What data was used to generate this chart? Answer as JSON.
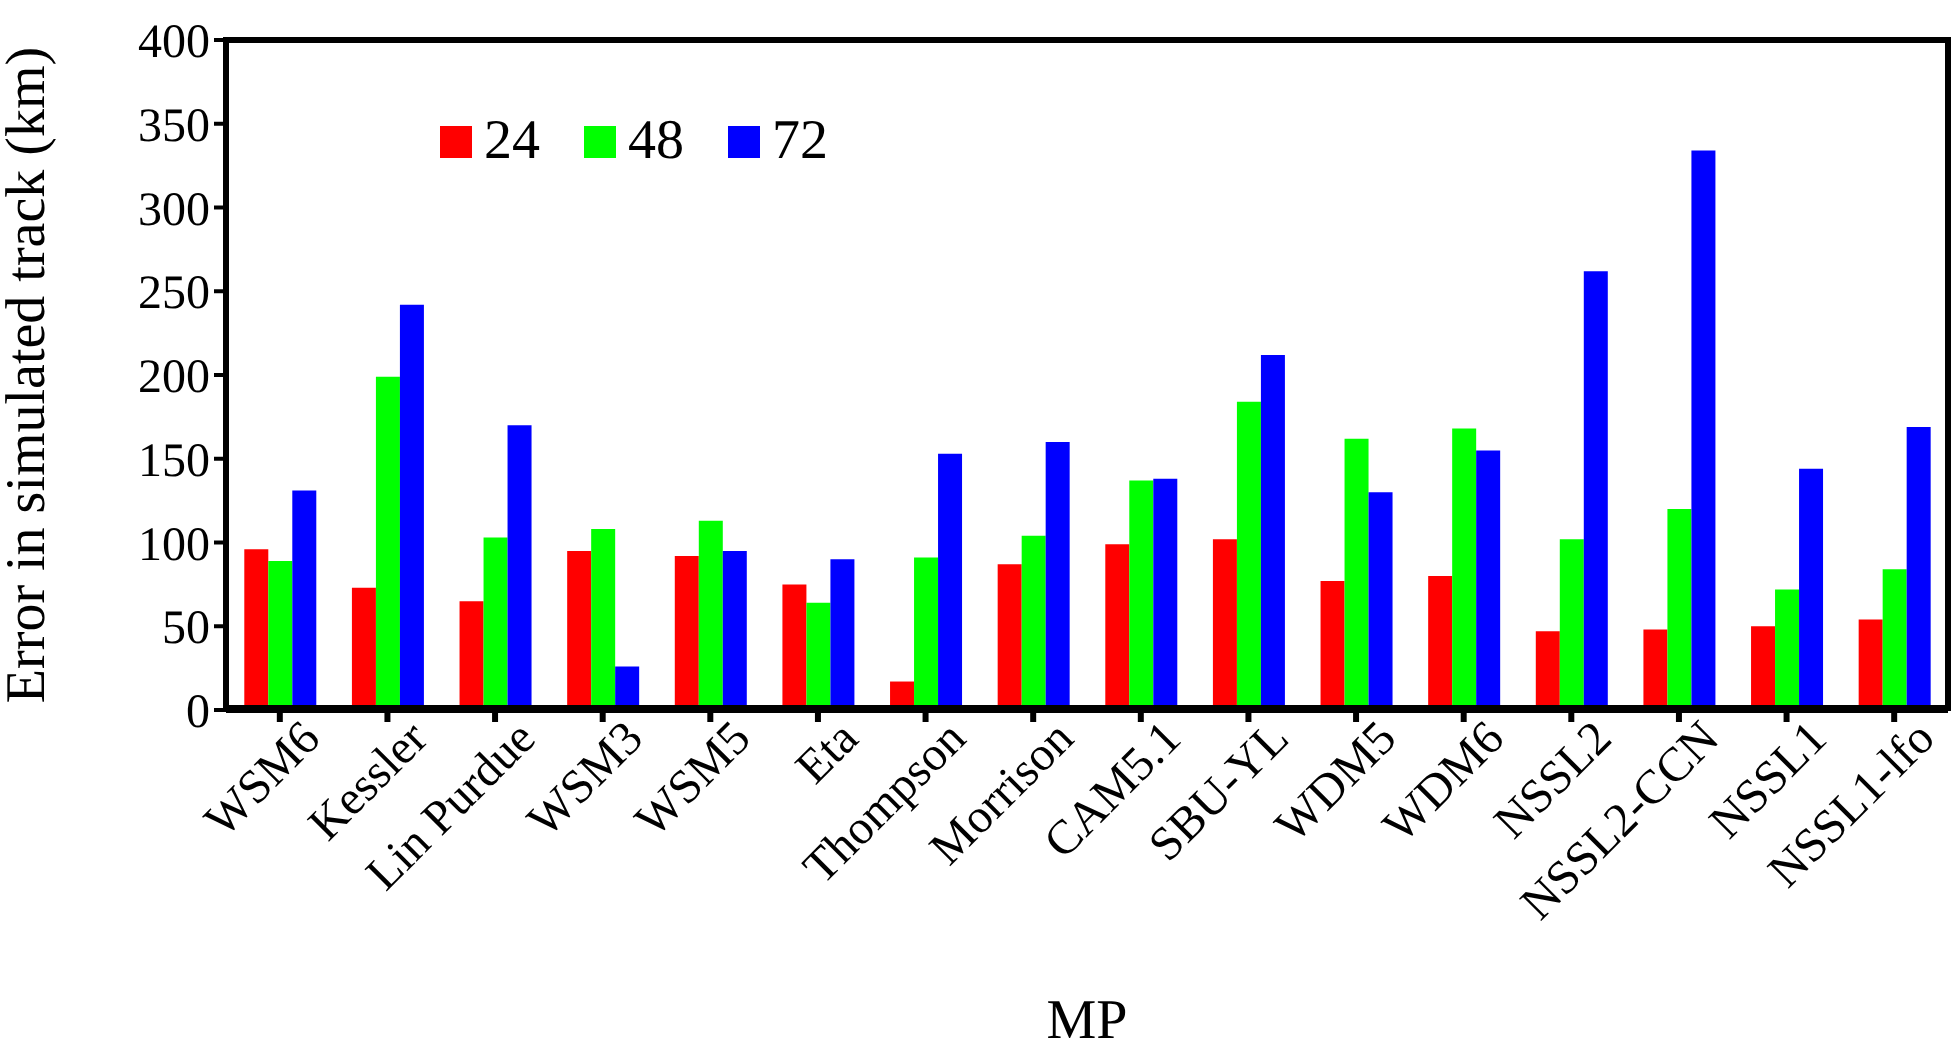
{
  "chart_data": {
    "type": "bar",
    "xlabel": "MP",
    "ylabel": "Error in simulated track (km)",
    "categories": [
      "WSM6",
      "Kessler",
      "Lin Purdue",
      "WSM3",
      "WSM5",
      "Eta",
      "Thompson",
      "Morrison",
      "CAM5.1",
      "SBU-YL",
      "WDM5",
      "WDM6",
      "NSSL2",
      "NSSL2-CCN",
      "NSSL1",
      "NSSL1-lfo"
    ],
    "series": [
      {
        "name": "24",
        "color": "#ff0000",
        "values": [
          96,
          73,
          65,
          95,
          92,
          75,
          17,
          87,
          99,
          102,
          77,
          80,
          47,
          48,
          50,
          54
        ]
      },
      {
        "name": "48",
        "color": "#00ff00",
        "values": [
          89,
          199,
          103,
          108,
          113,
          64,
          91,
          104,
          137,
          184,
          162,
          168,
          102,
          120,
          72,
          84
        ]
      },
      {
        "name": "72",
        "color": "#0000ff",
        "values": [
          131,
          242,
          170,
          26,
          95,
          90,
          153,
          160,
          138,
          212,
          130,
          155,
          262,
          334,
          144,
          169
        ]
      }
    ],
    "ylim": [
      0,
      400
    ],
    "yticks": [
      0,
      50,
      100,
      150,
      200,
      250,
      300,
      350,
      400
    ],
    "grid": false,
    "legend": "top left"
  }
}
